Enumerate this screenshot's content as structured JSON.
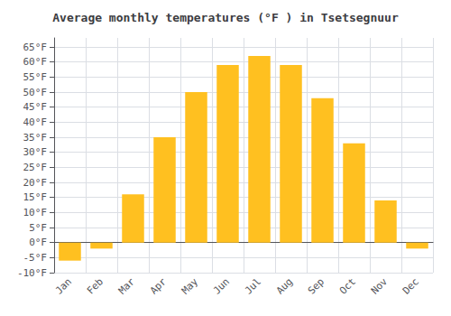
{
  "chart_data": {
    "type": "bar",
    "title": "Average monthly temperatures (°F ) in Tsetsegnuur",
    "categories": [
      "Jan",
      "Feb",
      "Mar",
      "Apr",
      "May",
      "Jun",
      "Jul",
      "Aug",
      "Sep",
      "Oct",
      "Nov",
      "Dec"
    ],
    "values": [
      -6,
      -2,
      16,
      35,
      50,
      59,
      62,
      59,
      48,
      33,
      14,
      -2
    ],
    "color": "#FFC020",
    "ylim": [
      -10,
      68
    ],
    "yticks": [
      {
        "value": -10,
        "label": "-10°F"
      },
      {
        "value": -5,
        "label": "-5°F"
      },
      {
        "value": 0,
        "label": "0°F"
      },
      {
        "value": 5,
        "label": "5°F"
      },
      {
        "value": 10,
        "label": "10°F"
      },
      {
        "value": 15,
        "label": "15°F"
      },
      {
        "value": 20,
        "label": "20°F"
      },
      {
        "value": 25,
        "label": "25°F"
      },
      {
        "value": 30,
        "label": "30°F"
      },
      {
        "value": 35,
        "label": "35°F"
      },
      {
        "value": 40,
        "label": "40°F"
      },
      {
        "value": 45,
        "label": "45°F"
      },
      {
        "value": 50,
        "label": "50°F"
      },
      {
        "value": 55,
        "label": "55°F"
      },
      {
        "value": 60,
        "label": "60°F"
      },
      {
        "value": 65,
        "label": "65°F"
      }
    ],
    "grid": true
  }
}
